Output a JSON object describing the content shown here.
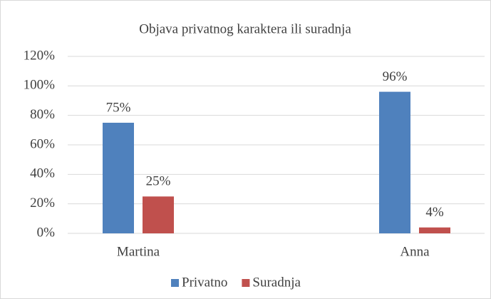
{
  "chart_data": {
    "type": "bar",
    "title": "Objava privatnog karaktera ili suradnja",
    "categories": [
      "Martina",
      "Anna"
    ],
    "series": [
      {
        "name": "Privatno",
        "color": "#4f81bd",
        "values": [
          75,
          96
        ],
        "value_labels": [
          "75%",
          "96%"
        ]
      },
      {
        "name": "Suradnja",
        "color": "#c0504d",
        "values": [
          25,
          4
        ],
        "value_labels": [
          "25%",
          "4%"
        ]
      }
    ],
    "ylim": [
      0,
      120
    ],
    "yticks": [
      {
        "value": 0,
        "label": "0%"
      },
      {
        "value": 20,
        "label": "20%"
      },
      {
        "value": 40,
        "label": "40%"
      },
      {
        "value": 60,
        "label": "60%"
      },
      {
        "value": 80,
        "label": "80%"
      },
      {
        "value": 100,
        "label": "100%"
      },
      {
        "value": 120,
        "label": "120%"
      }
    ],
    "grid": true,
    "legend": "bottom"
  }
}
